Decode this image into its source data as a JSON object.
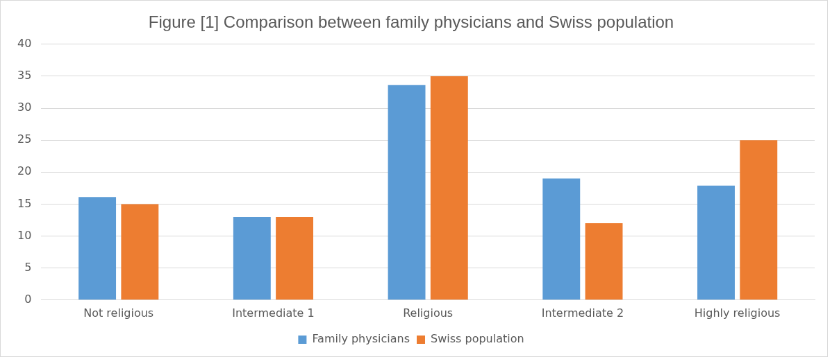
{
  "chart_data": {
    "type": "bar",
    "title": "Figure [1] Comparison between family physicians and Swiss population",
    "categories": [
      "Not religious",
      "Intermediate 1",
      "Religious",
      "Intermediate 2",
      "Highly religious"
    ],
    "series": [
      {
        "name": "Family physicians",
        "color": "#5b9bd5",
        "values": [
          16.1,
          13,
          33.6,
          19,
          17.9
        ]
      },
      {
        "name": "Swiss population",
        "color": "#ed7d31",
        "values": [
          15,
          13,
          35,
          12,
          25
        ]
      }
    ],
    "ylim": [
      0,
      40
    ],
    "yticks": [
      0,
      5,
      10,
      15,
      20,
      25,
      30,
      35,
      40
    ],
    "grid": "y",
    "legend": "bottom"
  }
}
